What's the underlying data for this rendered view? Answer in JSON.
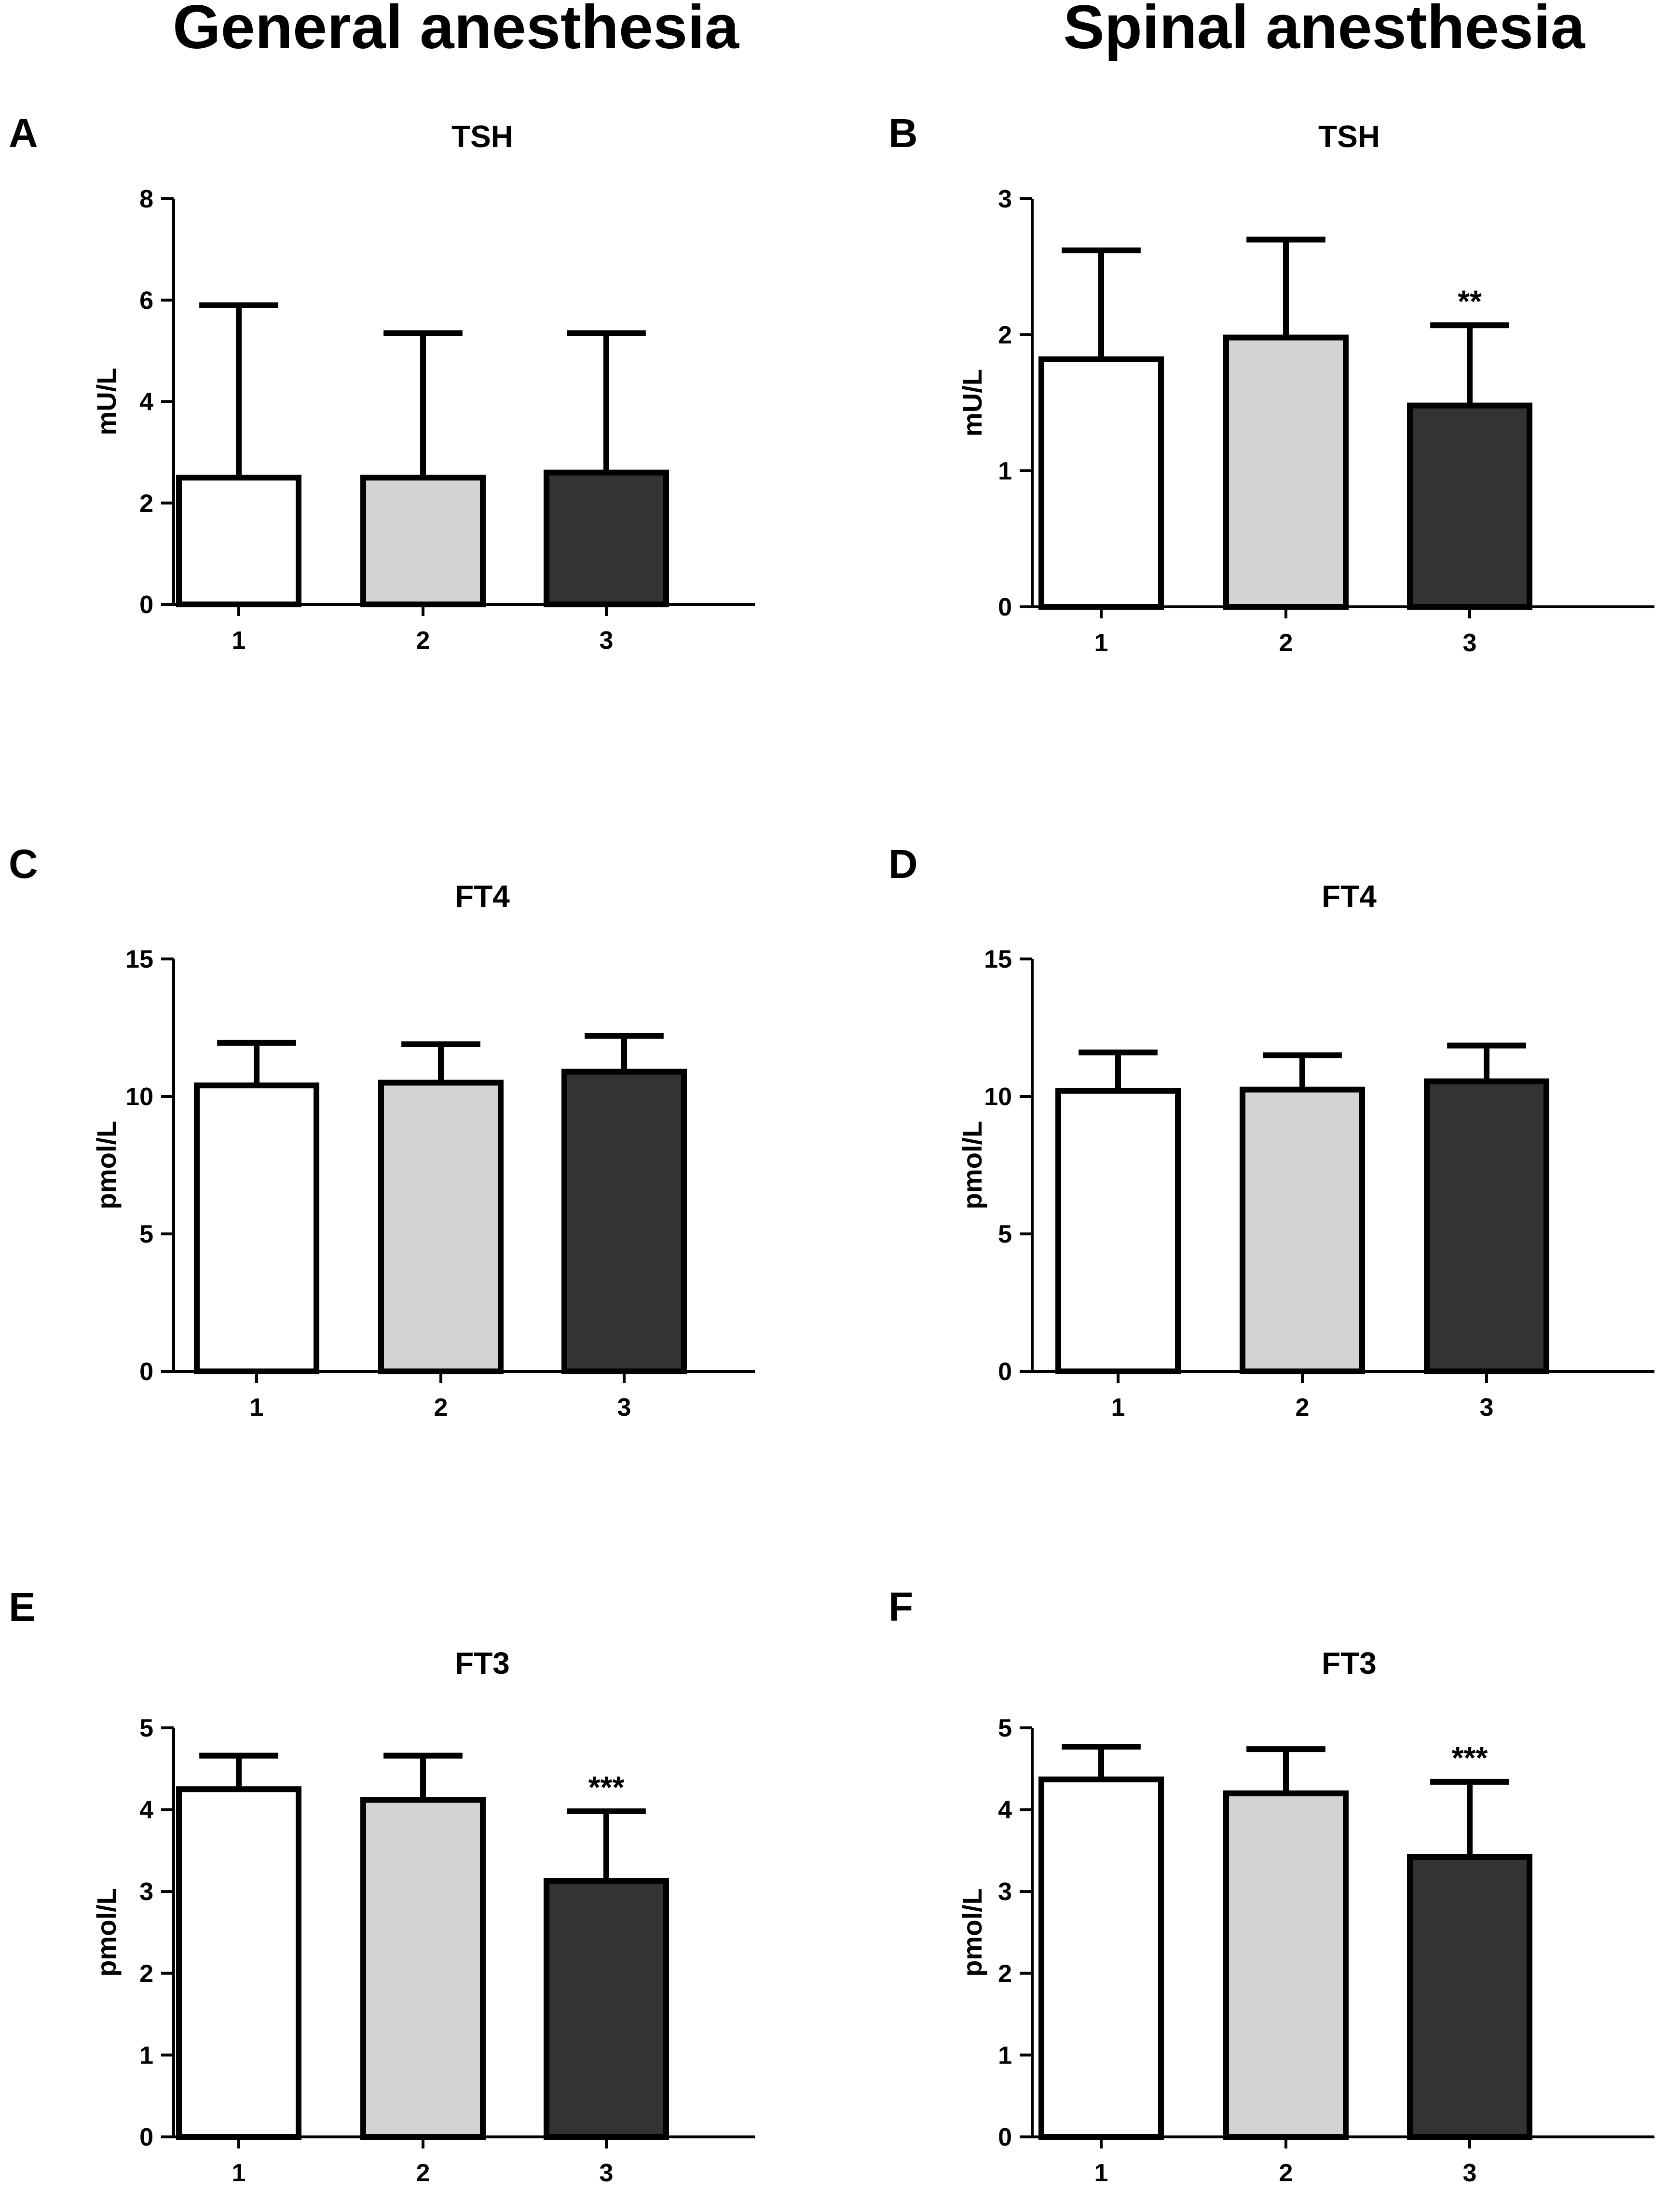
{
  "figure": {
    "column_titles": [
      "General anesthesia",
      "Spinal anesthesia"
    ]
  },
  "colors": {
    "group_1": "#ffffff",
    "group_2": "#d3d3d3",
    "group_3": "#333333",
    "outline": "#000000"
  },
  "chart_data": [
    {
      "panel": "A",
      "type": "bar",
      "title": "TSH",
      "categories": [
        "1",
        "2",
        "3"
      ],
      "values": [
        2.5,
        2.5,
        2.6
      ],
      "error_upper": [
        5.9,
        5.35,
        5.35
      ],
      "significance": [
        "",
        "",
        ""
      ],
      "ylabel": "mU/L",
      "xlabel": "",
      "ylim": [
        0,
        8
      ],
      "yticks": [
        0,
        2,
        4,
        6,
        8
      ]
    },
    {
      "panel": "B",
      "type": "bar",
      "title": "TSH",
      "categories": [
        "1",
        "2",
        "3"
      ],
      "values": [
        1.82,
        1.98,
        1.48
      ],
      "error_upper": [
        2.62,
        2.7,
        2.07
      ],
      "significance": [
        "",
        "",
        "**"
      ],
      "ylabel": "mU/L",
      "xlabel": "",
      "ylim": [
        0,
        3
      ],
      "yticks": [
        0,
        1,
        2,
        3
      ]
    },
    {
      "panel": "C",
      "type": "bar",
      "title": "FT4",
      "categories": [
        "1",
        "2",
        "3"
      ],
      "values": [
        10.4,
        10.5,
        10.9
      ],
      "error_upper": [
        11.95,
        11.9,
        12.2
      ],
      "significance": [
        "",
        "",
        ""
      ],
      "ylabel": "pmol/L",
      "xlabel": "",
      "ylim": [
        0,
        15
      ],
      "yticks": [
        0,
        5,
        10,
        15
      ]
    },
    {
      "panel": "D",
      "type": "bar",
      "title": "FT4",
      "categories": [
        "1",
        "2",
        "3"
      ],
      "values": [
        10.2,
        10.25,
        10.55
      ],
      "error_upper": [
        11.6,
        11.5,
        11.85
      ],
      "significance": [
        "",
        "",
        ""
      ],
      "ylabel": "pmol/L",
      "xlabel": "",
      "ylim": [
        0,
        15
      ],
      "yticks": [
        0,
        5,
        10,
        15
      ]
    },
    {
      "panel": "E",
      "type": "bar",
      "title": "FT3",
      "categories": [
        "1",
        "2",
        "3"
      ],
      "values": [
        4.25,
        4.12,
        3.13
      ],
      "error_upper": [
        4.66,
        4.66,
        3.98
      ],
      "significance": [
        "",
        "",
        "***"
      ],
      "ylabel": "pmol/L",
      "xlabel": "",
      "ylim": [
        0,
        5
      ],
      "yticks": [
        0,
        1,
        2,
        3,
        4,
        5
      ]
    },
    {
      "panel": "F",
      "type": "bar",
      "title": "FT3",
      "categories": [
        "1",
        "2",
        "3"
      ],
      "values": [
        4.37,
        4.2,
        3.42
      ],
      "error_upper": [
        4.77,
        4.74,
        4.34
      ],
      "significance": [
        "",
        "",
        "***"
      ],
      "ylabel": "pmol/L",
      "xlabel": "",
      "ylim": [
        0,
        5
      ],
      "yticks": [
        0,
        1,
        2,
        3,
        4,
        5
      ]
    }
  ]
}
